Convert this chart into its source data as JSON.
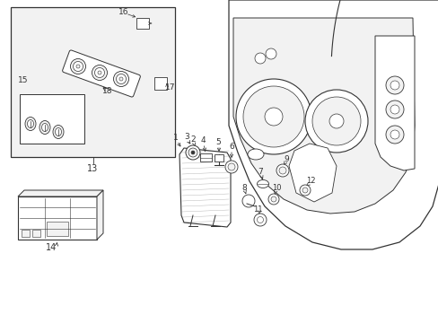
{
  "bg_color": "#ffffff",
  "line_color": "#333333",
  "fill_light": "#f2f2f2",
  "fill_white": "#ffffff",
  "fig_width": 4.89,
  "fig_height": 3.6,
  "dpi": 100
}
